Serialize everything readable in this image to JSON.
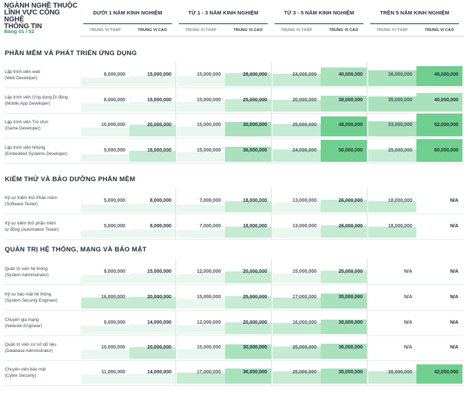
{
  "header": {
    "title_lines": [
      "NGÀNH NGHỀ THUỘC",
      "LĨNH VỰC CÔNG NGHỆ",
      "THÔNG TIN"
    ],
    "table_label": "Bảng 01 / 02",
    "groups": [
      "DƯỚI 1 NĂM KINH NGHIỆM",
      "TỪ 1 - 3 NĂM KINH NGHIỆM",
      "TỪ 3 - 5 NĂM KINH NGHIỆM",
      "TRÊN 5 NĂM KINH NGHIỆM"
    ],
    "low_label": "TRUNG VỊ THẤP",
    "high_label": "TRUNG VỊ CAO"
  },
  "colors": {
    "shade_light": "#e9f7ee",
    "shade_mid": "#c5ebd3",
    "shade_strong": "#a9e1bd",
    "shade_top": "#6fcf8f"
  },
  "sections": [
    {
      "title": "PHẦN MỀM VÀ PHÁT TRIỂN ỨNG DỤNG",
      "rows": [
        {
          "label1": "Lập trình viên web",
          "label2": "(Web Developer)",
          "values": [
            "8,000,000",
            "15,000,000",
            "15,000,000",
            "28,000,000",
            "24,000,000",
            "40,000,000",
            "36,000,000",
            "48,000,000"
          ],
          "shade": [
            0.15,
            0.25,
            0.25,
            0.45,
            0.4,
            0.75,
            0.6,
            0.85
          ]
        },
        {
          "label1": "Lập trình viên Ứng dụng Di động",
          "label2": "(Mobile App Developer)",
          "values": [
            "8,000,000",
            "15,000,000",
            "15,000,000",
            "25,000,000",
            "20,000,000",
            "38,000,000",
            "35,000,000",
            "40,000,000"
          ],
          "shade": [
            0.15,
            0.25,
            0.25,
            0.4,
            0.35,
            0.6,
            0.55,
            0.75
          ]
        },
        {
          "label1": "Lập trình viên Trò chơi",
          "label2": "(Game Developer)",
          "values": [
            "10,000,000",
            "20,000,000",
            "15,000,000",
            "30,000,000",
            "25,000,000",
            "48,000,000",
            "33,000,000",
            "52,000,000"
          ],
          "shade": [
            0.2,
            0.35,
            0.25,
            0.5,
            0.4,
            0.85,
            0.55,
            1.0
          ]
        },
        {
          "label1": "Lập trình viên Nhúng",
          "label2": "(Embedded Systems Developer)",
          "values": [
            "5,000,000",
            "18,000,000",
            "15,000,000",
            "36,000,000",
            "24,000,000",
            "50,000,000",
            "25,000,000",
            "60,000,000"
          ],
          "shade": [
            0.1,
            0.3,
            0.25,
            0.55,
            0.4,
            0.95,
            0.4,
            1.0
          ]
        }
      ]
    },
    {
      "title": "KIỂM THỬ VÀ BẢO DƯỠNG PHẦN MỀM",
      "rows": [
        {
          "label1": "Kỹ sư Kiểm thử Phần mềm",
          "label2": "(Software Tester)",
          "values": [
            "5,000,000",
            "8,000,000",
            "7,000,000",
            "18,000,000",
            "13,000,000",
            "26,000,000",
            "18,000,000",
            "N/A"
          ],
          "shade": [
            0.1,
            0.15,
            0.12,
            0.3,
            0.22,
            0.4,
            0.3,
            0
          ]
        },
        {
          "label1": "Kỹ sư kiểm thử phần mềm",
          "label2": "tự động (Automation Tester)",
          "values": [
            "5,000,000",
            "8,000,000",
            "7,000,000",
            "18,000,000",
            "13,000,000",
            "26,000,000",
            "18,000,000",
            "N/A"
          ],
          "shade": [
            0.1,
            0.15,
            0.12,
            0.3,
            0.22,
            0.4,
            0.3,
            0
          ]
        }
      ]
    },
    {
      "title": "QUẢN TRỊ HỆ THỐNG, MẠNG VÀ BẢO MẬT",
      "rows": [
        {
          "label1": "Quản trị viên hệ thống",
          "label2": "(System Administrator)",
          "values": [
            "9,000,000",
            "15,000,000",
            "12,000,000",
            "20,000,000",
            "15,000,000",
            "25,000,000",
            "N/A",
            "N/A"
          ],
          "shade": [
            0.15,
            0.25,
            0.2,
            0.35,
            0.25,
            0.4,
            0,
            0
          ]
        },
        {
          "label1": "Kỹ sư bảo mật hệ thống",
          "label2": "(System Security Engineer)",
          "values": [
            "16,000,000",
            "20,000,000",
            "15,000,000",
            "25,000,000",
            "17,000,000",
            "35,000,000",
            "N/A",
            "N/A"
          ],
          "shade": [
            0.3,
            0.35,
            0.25,
            0.4,
            0.3,
            0.55,
            0,
            0
          ]
        },
        {
          "label1": "Chuyên gia mạng",
          "label2": "(Network Engineer)",
          "values": [
            "9,000,000",
            "14,000,000",
            "12,000,000",
            "20,000,000",
            "16,000,000",
            "30,000,000",
            "N/A",
            "N/A"
          ],
          "shade": [
            0.15,
            0.25,
            0.2,
            0.35,
            0.3,
            0.5,
            0,
            0
          ]
        },
        {
          "label1": "Quản trị viên cơ sở dữ liệu",
          "label2": "(Database Administrator)",
          "values": [
            "10,000,000",
            "20,000,000",
            "15,000,000",
            "30,000,000",
            "25,000,000",
            "36,000,000",
            "N/A",
            "N/A"
          ],
          "shade": [
            0.2,
            0.35,
            0.25,
            0.5,
            0.4,
            0.55,
            0,
            0
          ]
        },
        {
          "label1": "Chuyên viên bảo mật",
          "label2": "(Cyber Security)",
          "values": [
            "11,000,000",
            "14,000,000",
            "17,000,000",
            "36,000,000",
            "25,000,000",
            "35,000,000",
            "26,000,000",
            "42,000,000"
          ],
          "shade": [
            0.2,
            0.25,
            0.3,
            0.55,
            0.4,
            0.55,
            0.4,
            0.8
          ]
        }
      ]
    }
  ]
}
